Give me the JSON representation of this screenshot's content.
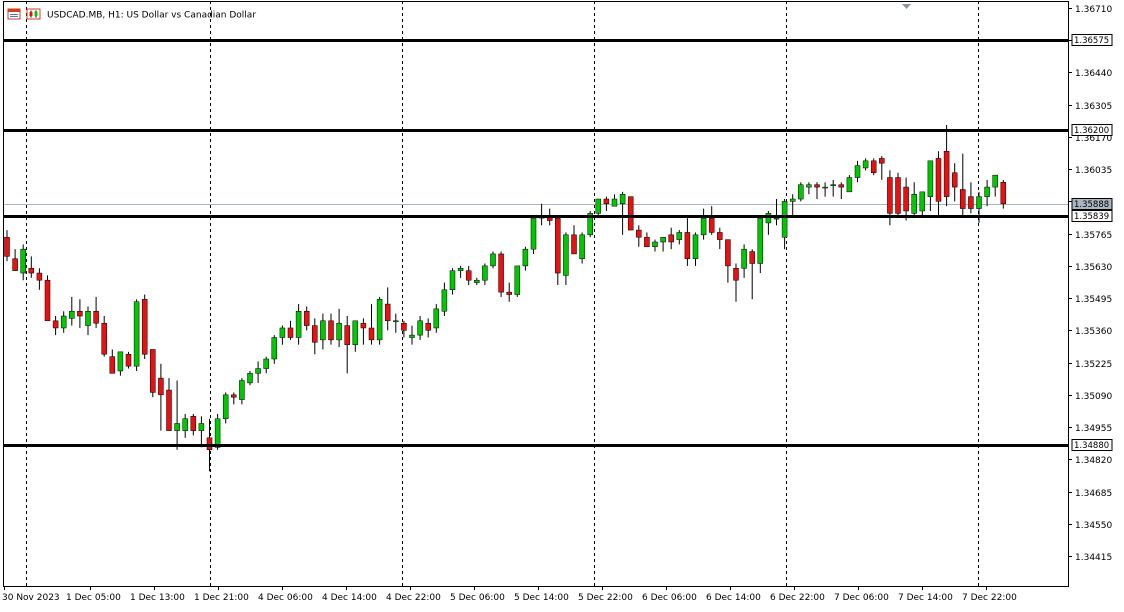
{
  "header": {
    "symbol_title": "USDCAD.MB, H1:  US Dollar vs Canadian Dollar"
  },
  "colors": {
    "bull": "#00c800",
    "bear": "#e81010",
    "wick": "#000000",
    "grid": "#000000",
    "level_line": "#000000",
    "bid_line": "#a9b5c0"
  },
  "chart_data": {
    "type": "candlestick",
    "title": "USDCAD.MB, H1:  US Dollar vs Canadian Dollar",
    "timeframe": "H1",
    "ylim": [
      1.3438,
      1.3673
    ],
    "y_ticks": [
      "1.36710",
      "1.36575",
      "1.36440",
      "1.36305",
      "1.36170",
      "1.36035",
      "1.35900",
      "1.35765",
      "1.35630",
      "1.35495",
      "1.35360",
      "1.35225",
      "1.35090",
      "1.34955",
      "1.34820",
      "1.34685",
      "1.34550",
      "1.34415"
    ],
    "x_ticks": [
      "30 Nov 2023",
      "1 Dec 05:00",
      "1 Dec 13:00",
      "1 Dec 21:00",
      "4 Dec 06:00",
      "4 Dec 14:00",
      "4 Dec 22:00",
      "5 Dec 06:00",
      "5 Dec 14:00",
      "5 Dec 22:00",
      "6 Dec 06:00",
      "6 Dec 14:00",
      "6 Dec 22:00",
      "7 Dec 06:00",
      "7 Dec 14:00",
      "7 Dec 22:00"
    ],
    "levels": [
      {
        "label": "1.36575",
        "value": 1.36575
      },
      {
        "label": "1.36200",
        "value": 1.362
      },
      {
        "label": "1.35839",
        "value": 1.35839
      },
      {
        "label": "1.34880",
        "value": 1.3488
      }
    ],
    "bid": {
      "label": "1.35888",
      "value": 1.35888
    },
    "candles": [
      [
        1.3575,
        1.3578,
        1.3565,
        1.3567
      ],
      [
        1.3566,
        1.357,
        1.3561,
        1.3561
      ],
      [
        1.356,
        1.3572,
        1.3557,
        1.357
      ],
      [
        1.3562,
        1.3567,
        1.3558,
        1.356
      ],
      [
        1.356,
        1.3562,
        1.3553,
        1.3557
      ],
      [
        1.3557,
        1.3559,
        1.354,
        1.354
      ],
      [
        1.354,
        1.3542,
        1.3534,
        1.3537
      ],
      [
        1.3537,
        1.3544,
        1.3535,
        1.3542
      ],
      [
        1.3541,
        1.355,
        1.3538,
        1.3544
      ],
      [
        1.3544,
        1.3549,
        1.3537,
        1.3542
      ],
      [
        1.3538,
        1.3546,
        1.3534,
        1.3544
      ],
      [
        1.3544,
        1.355,
        1.3537,
        1.3539
      ],
      [
        1.3539,
        1.3542,
        1.3525,
        1.3526
      ],
      [
        1.3525,
        1.3528,
        1.3518,
        1.3518
      ],
      [
        1.3519,
        1.3527,
        1.3517,
        1.3527
      ],
      [
        1.3526,
        1.3527,
        1.352,
        1.3521
      ],
      [
        1.3521,
        1.3549,
        1.3519,
        1.3548
      ],
      [
        1.3549,
        1.3551,
        1.3524,
        1.3526
      ],
      [
        1.3528,
        1.3528,
        1.3508,
        1.351
      ],
      [
        1.3516,
        1.3522,
        1.3494,
        1.3509
      ],
      [
        1.3511,
        1.3516,
        1.3494,
        1.3494
      ],
      [
        1.3494,
        1.3515,
        1.3486,
        1.3497
      ],
      [
        1.3494,
        1.3501,
        1.3491,
        1.3499
      ],
      [
        1.35,
        1.3501,
        1.3492,
        1.3494
      ],
      [
        1.3494,
        1.35,
        1.3487,
        1.3497
      ],
      [
        1.3491,
        1.3499,
        1.3477,
        1.3486
      ],
      [
        1.3487,
        1.3501,
        1.3486,
        1.3499
      ],
      [
        1.3499,
        1.351,
        1.3497,
        1.3509
      ],
      [
        1.3509,
        1.351,
        1.3505,
        1.3508
      ],
      [
        1.3507,
        1.3516,
        1.3505,
        1.3515
      ],
      [
        1.3514,
        1.3519,
        1.3513,
        1.3518
      ],
      [
        1.3518,
        1.3523,
        1.3514,
        1.352
      ],
      [
        1.352,
        1.3525,
        1.3518,
        1.3524
      ],
      [
        1.3524,
        1.3534,
        1.3522,
        1.3533
      ],
      [
        1.3533,
        1.3538,
        1.353,
        1.3537
      ],
      [
        1.3537,
        1.354,
        1.3532,
        1.3533
      ],
      [
        1.3533,
        1.3547,
        1.353,
        1.3544
      ],
      [
        1.3544,
        1.3546,
        1.3536,
        1.3538
      ],
      [
        1.3538,
        1.3541,
        1.3526,
        1.3531
      ],
      [
        1.3532,
        1.3543,
        1.3528,
        1.354
      ],
      [
        1.354,
        1.3543,
        1.353,
        1.3532
      ],
      [
        1.3532,
        1.3545,
        1.3529,
        1.3539
      ],
      [
        1.3538,
        1.3542,
        1.3518,
        1.353
      ],
      [
        1.353,
        1.354,
        1.3527,
        1.354
      ],
      [
        1.3539,
        1.3541,
        1.353,
        1.3537
      ],
      [
        1.3537,
        1.3547,
        1.353,
        1.3532
      ],
      [
        1.3532,
        1.355,
        1.353,
        1.3549
      ],
      [
        1.3547,
        1.3554,
        1.3536,
        1.354
      ],
      [
        1.354,
        1.3543,
        1.3535,
        1.354
      ],
      [
        1.3539,
        1.354,
        1.3533,
        1.3536
      ],
      [
        1.3533,
        1.3538,
        1.353,
        1.3534
      ],
      [
        1.3534,
        1.3542,
        1.3532,
        1.354
      ],
      [
        1.3539,
        1.3541,
        1.3533,
        1.3536
      ],
      [
        1.3537,
        1.3547,
        1.3535,
        1.3545
      ],
      [
        1.3544,
        1.3556,
        1.3542,
        1.3553
      ],
      [
        1.3553,
        1.3562,
        1.3551,
        1.3561
      ],
      [
        1.3561,
        1.3563,
        1.3558,
        1.3562
      ],
      [
        1.3561,
        1.3563,
        1.3555,
        1.3557
      ],
      [
        1.3556,
        1.3558,
        1.3555,
        1.3557
      ],
      [
        1.3557,
        1.3564,
        1.3555,
        1.3563
      ],
      [
        1.3563,
        1.3569,
        1.3562,
        1.3568
      ],
      [
        1.3568,
        1.3569,
        1.355,
        1.3552
      ],
      [
        1.3552,
        1.3556,
        1.3548,
        1.3551
      ],
      [
        1.3551,
        1.3563,
        1.355,
        1.3563
      ],
      [
        1.3563,
        1.3571,
        1.3561,
        1.357
      ],
      [
        1.357,
        1.3583,
        1.3568,
        1.3583
      ],
      [
        1.3583,
        1.3589,
        1.358,
        1.3584
      ],
      [
        1.3584,
        1.3587,
        1.358,
        1.3582
      ],
      [
        1.3583,
        1.3583,
        1.3555,
        1.356
      ],
      [
        1.3559,
        1.3577,
        1.3555,
        1.3576
      ],
      [
        1.3576,
        1.358,
        1.3568,
        1.3568
      ],
      [
        1.3566,
        1.3577,
        1.3564,
        1.3576
      ],
      [
        1.3576,
        1.3586,
        1.3575,
        1.3585
      ],
      [
        1.3585,
        1.3591,
        1.3584,
        1.3591
      ],
      [
        1.3591,
        1.3592,
        1.3586,
        1.3589
      ],
      [
        1.3588,
        1.3593,
        1.3588,
        1.3591
      ],
      [
        1.3589,
        1.3594,
        1.3576,
        1.3593
      ],
      [
        1.3592,
        1.3592,
        1.3578,
        1.3578
      ],
      [
        1.3578,
        1.358,
        1.3571,
        1.3575
      ],
      [
        1.3575,
        1.3577,
        1.3571,
        1.3571
      ],
      [
        1.3571,
        1.3574,
        1.3569,
        1.3573
      ],
      [
        1.3573,
        1.3575,
        1.3569,
        1.3575
      ],
      [
        1.3576,
        1.3579,
        1.357,
        1.3573
      ],
      [
        1.3574,
        1.3578,
        1.3572,
        1.3577
      ],
      [
        1.3577,
        1.3583,
        1.3563,
        1.3566
      ],
      [
        1.3566,
        1.3577,
        1.3563,
        1.3576
      ],
      [
        1.3576,
        1.3587,
        1.3574,
        1.3583
      ],
      [
        1.3583,
        1.3588,
        1.3576,
        1.3577
      ],
      [
        1.3577,
        1.3579,
        1.357,
        1.3574
      ],
      [
        1.3574,
        1.3574,
        1.3556,
        1.3563
      ],
      [
        1.3562,
        1.3564,
        1.3548,
        1.3557
      ],
      [
        1.3562,
        1.3572,
        1.3558,
        1.357
      ],
      [
        1.3569,
        1.357,
        1.3549,
        1.3564
      ],
      [
        1.3564,
        1.3583,
        1.356,
        1.3583
      ],
      [
        1.3581,
        1.3586,
        1.3576,
        1.3585
      ],
      [
        1.3583,
        1.3591,
        1.358,
        1.3583
      ],
      [
        1.3575,
        1.3591,
        1.357,
        1.359
      ],
      [
        1.359,
        1.3593,
        1.3584,
        1.3591
      ],
      [
        1.3591,
        1.3598,
        1.359,
        1.3597
      ],
      [
        1.3596,
        1.3598,
        1.3593,
        1.3597
      ],
      [
        1.3597,
        1.3598,
        1.3591,
        1.3596
      ],
      [
        1.3596,
        1.3598,
        1.3592,
        1.3596
      ],
      [
        1.3597,
        1.3599,
        1.3592,
        1.3597
      ],
      [
        1.3597,
        1.3598,
        1.3591,
        1.3596
      ],
      [
        1.3594,
        1.3601,
        1.3594,
        1.36
      ],
      [
        1.36,
        1.3607,
        1.3598,
        1.3605
      ],
      [
        1.3604,
        1.3608,
        1.3603,
        1.3607
      ],
      [
        1.3607,
        1.3608,
        1.3601,
        1.3602
      ],
      [
        1.3608,
        1.3609,
        1.3599,
        1.3606
      ],
      [
        1.36,
        1.3603,
        1.358,
        1.3585
      ],
      [
        1.36,
        1.3602,
        1.3584,
        1.3585
      ],
      [
        1.3596,
        1.36,
        1.3582,
        1.3586
      ],
      [
        1.3585,
        1.3598,
        1.3583,
        1.3593
      ],
      [
        1.3586,
        1.3594,
        1.3584,
        1.3594
      ],
      [
        1.3592,
        1.3606,
        1.3586,
        1.3607
      ],
      [
        1.3608,
        1.3611,
        1.3584,
        1.359
      ],
      [
        1.3611,
        1.3622,
        1.3588,
        1.3592
      ],
      [
        1.3602,
        1.3606,
        1.359,
        1.3596
      ],
      [
        1.3595,
        1.361,
        1.3584,
        1.3587
      ],
      [
        1.3592,
        1.3598,
        1.3585,
        1.3587
      ],
      [
        1.3587,
        1.3594,
        1.3581,
        1.3592
      ],
      [
        1.3592,
        1.3599,
        1.3588,
        1.3596
      ],
      [
        1.3596,
        1.3601,
        1.3592,
        1.3601
      ],
      [
        1.3598,
        1.3599,
        1.3587,
        1.3589
      ]
    ]
  }
}
